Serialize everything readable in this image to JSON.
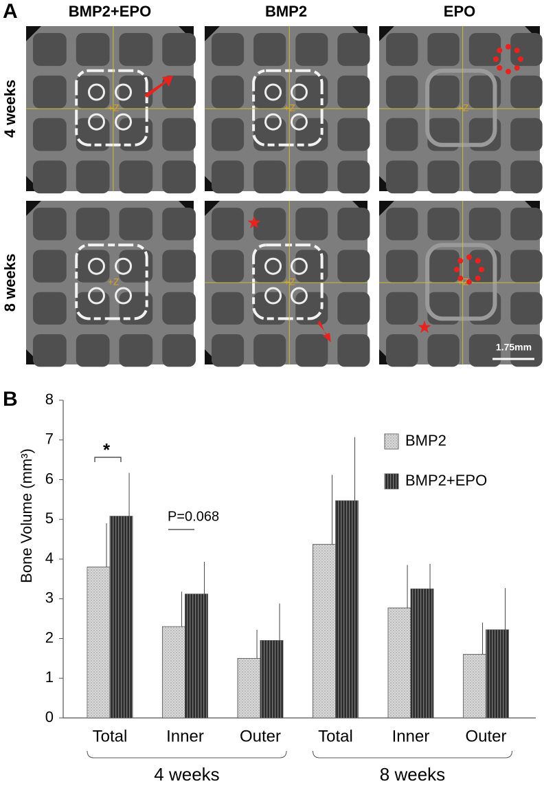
{
  "panel_a": {
    "label": "A",
    "columns": [
      "BMP2+EPO",
      "BMP2",
      "EPO"
    ],
    "rows": [
      "4 weeks",
      "8 weeks"
    ],
    "image_marker": "+Z",
    "scale_bar": "1.75mm"
  },
  "chart_data": {
    "type": "bar",
    "panel_label": "B",
    "y_label": "Bone Volume (mm³)",
    "categories": [
      "Total",
      "Inner",
      "Outer",
      "Total",
      "Inner",
      "Outer"
    ],
    "group_labels": [
      "4 weeks",
      "8 weeks"
    ],
    "series": [
      {
        "name": "BMP2",
        "color": "#d9d9d9",
        "values": [
          3.8,
          2.3,
          1.5,
          4.37,
          2.77,
          1.6
        ],
        "errors": [
          1.1,
          0.88,
          0.72,
          1.75,
          1.08,
          0.8
        ]
      },
      {
        "name": "BMP2+EPO",
        "color": "#2b2b2b",
        "values": [
          5.08,
          3.12,
          1.95,
          5.47,
          3.25,
          2.22
        ],
        "errors": [
          1.09,
          0.81,
          0.93,
          1.6,
          0.63,
          1.05
        ]
      }
    ],
    "annotations": [
      "*",
      "P=0.068"
    ],
    "ylim": [
      0,
      8
    ],
    "yticks": [
      0,
      1,
      2,
      3,
      4,
      5,
      6,
      7,
      8
    ],
    "grid": false,
    "legend": "upper right"
  }
}
